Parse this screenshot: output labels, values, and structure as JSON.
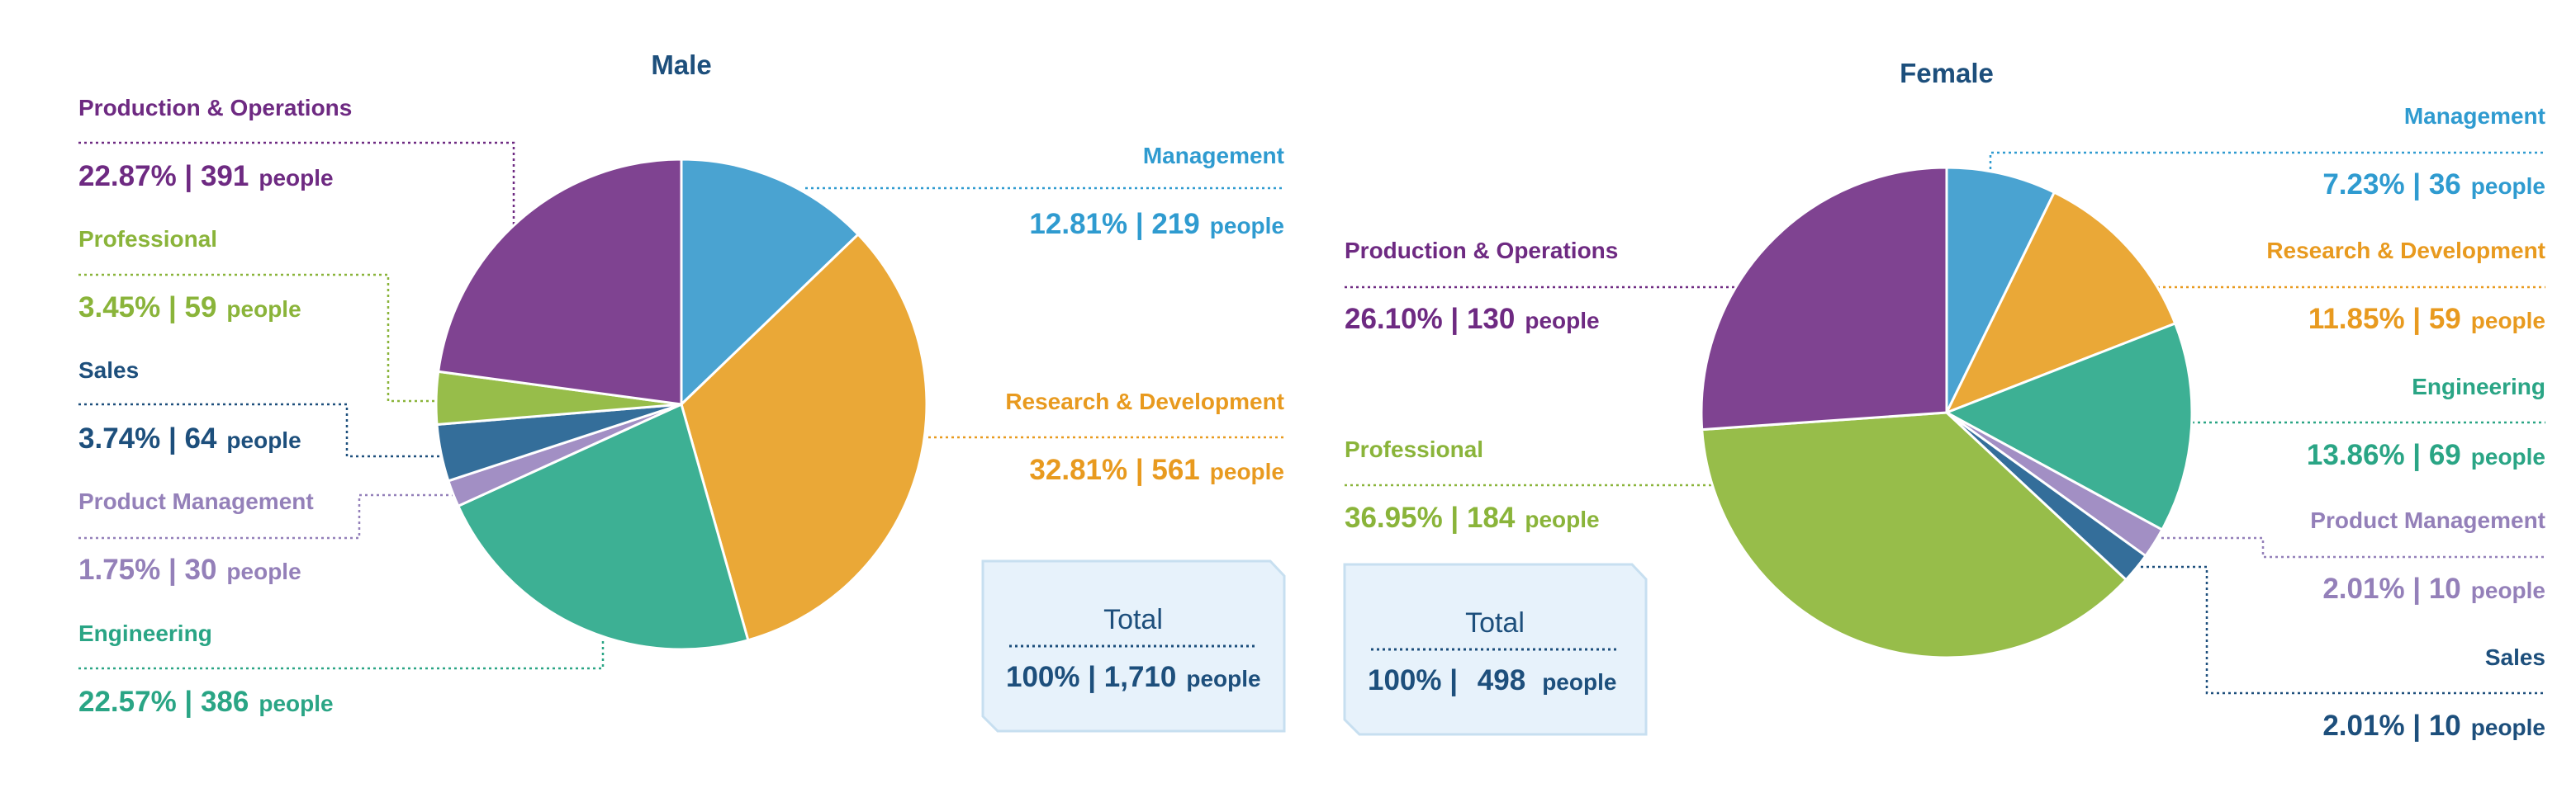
{
  "colors": {
    "Management": "#4aa3d1",
    "Research & Development": "#eaa837",
    "Engineering": "#3db094",
    "Product Management": "#a28fc4",
    "Sales": "#346e9a",
    "Professional": "#97bd4a",
    "Production & Operations": "#7f4391",
    "Management_text": "#2f9bd0",
    "Research & Development_text": "#e89a1f",
    "Engineering_text": "#2aa585",
    "Product Management_text": "#9480b9",
    "Sales_text": "#1d4f7c",
    "Professional_text": "#8ab43a",
    "Production & Operations_text": "#6e2a82",
    "title": "#1d4f7c",
    "total_box": "#e7f2fb"
  },
  "chart_data": [
    {
      "type": "pie",
      "title": "Male",
      "unit": "people",
      "slices": [
        {
          "label": "Management",
          "percent": "12.81%",
          "count": "219",
          "value": 219
        },
        {
          "label": "Research & Development",
          "percent": "32.81%",
          "count": "561",
          "value": 561
        },
        {
          "label": "Engineering",
          "percent": "22.57%",
          "count": "386",
          "value": 386
        },
        {
          "label": "Product Management",
          "percent": "1.75%",
          "count": "30",
          "value": 30
        },
        {
          "label": "Sales",
          "percent": "3.74%",
          "count": "64",
          "value": 64
        },
        {
          "label": "Professional",
          "percent": "3.45%",
          "count": "59",
          "value": 59
        },
        {
          "label": "Production & Operations",
          "percent": "22.87%",
          "count": "391",
          "value": 391
        }
      ],
      "total": {
        "heading": "Total",
        "percent": "100%",
        "count": "1,710",
        "unit": "people"
      }
    },
    {
      "type": "pie",
      "title": "Female",
      "unit": "people",
      "slices": [
        {
          "label": "Management",
          "percent": "7.23%",
          "count": "36",
          "value": 36
        },
        {
          "label": "Research & Development",
          "percent": "11.85%",
          "count": "59",
          "value": 59
        },
        {
          "label": "Engineering",
          "percent": "13.86%",
          "count": "69",
          "value": 69
        },
        {
          "label": "Product Management",
          "percent": "2.01%",
          "count": "10",
          "value": 10
        },
        {
          "label": "Sales",
          "percent": "2.01%",
          "count": "10",
          "value": 10
        },
        {
          "label": "Professional",
          "percent": "36.95%",
          "count": "184",
          "value": 184
        },
        {
          "label": "Production & Operations",
          "percent": "26.10%",
          "count": "130",
          "value": 130
        }
      ],
      "total": {
        "heading": "Total",
        "percent": "100%",
        "count": "498",
        "unit": "people"
      }
    }
  ]
}
